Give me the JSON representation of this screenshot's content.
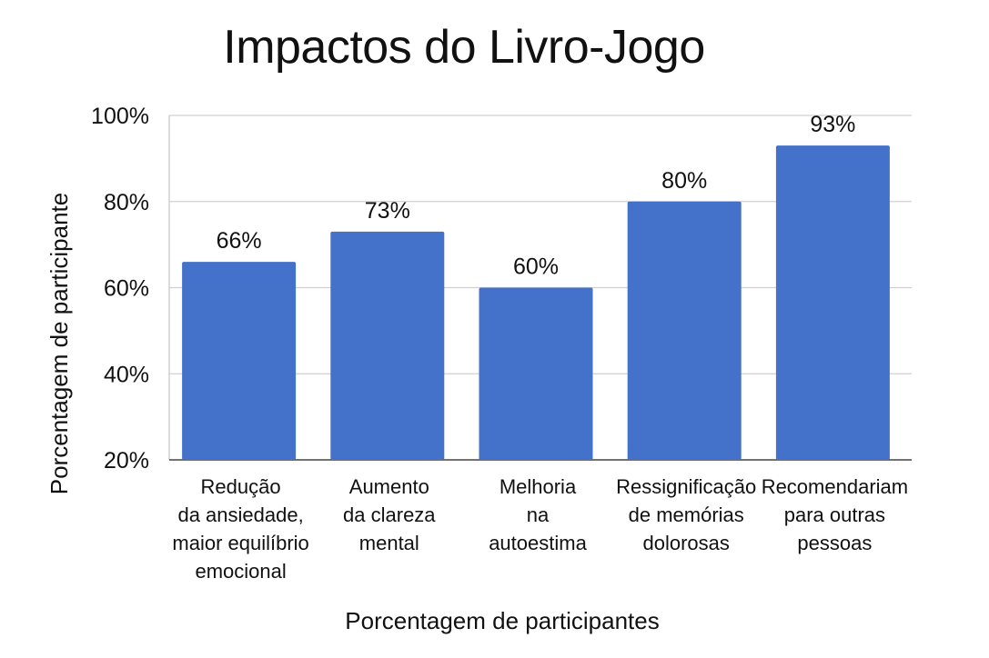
{
  "chart_data": {
    "type": "bar",
    "title": "Impactos do Livro-Jogo",
    "xlabel": "Porcentagem de participantes",
    "ylabel": "Porcentagem de participante",
    "categories": [
      [
        "Redução",
        "da ansiedade,",
        "maior equilíbrio",
        "emocional"
      ],
      [
        "Aumento",
        "da clareza",
        "mental"
      ],
      [
        "Melhoria",
        "na",
        "autoestima"
      ],
      [
        "Ressignificação",
        "de memórias",
        "dolorosas"
      ],
      [
        "Recomendariam",
        "para outras",
        "pessoas"
      ]
    ],
    "values": [
      66,
      73,
      60,
      80,
      93
    ],
    "value_labels": [
      "66%",
      "73%",
      "60%",
      "80%",
      "93%"
    ],
    "yticks": [
      20,
      40,
      60,
      80,
      100
    ],
    "ytick_labels": [
      "20%",
      "40%",
      "60%",
      "80%",
      "100%"
    ],
    "ylim": [
      20,
      100
    ],
    "grid": true,
    "bar_color": "#4472CA",
    "grid_color": "#D0D0D0"
  }
}
